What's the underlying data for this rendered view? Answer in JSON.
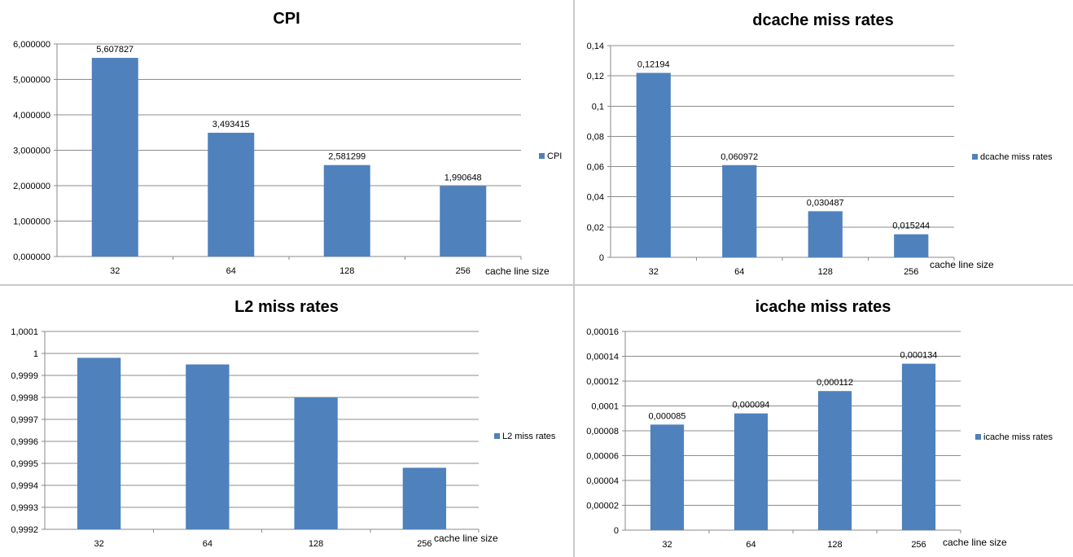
{
  "chart_data": [
    {
      "type": "bar",
      "title": "CPI",
      "xlabel": "cache line size",
      "ylabel": "",
      "categories": [
        "32",
        "64",
        "128",
        "256"
      ],
      "series": [
        {
          "name": "CPI",
          "values": [
            5.607827,
            3.493415,
            2.581299,
            1.990648
          ]
        }
      ],
      "data_labels": [
        "5,607827",
        "3,493415",
        "2,581299",
        "1,990648"
      ],
      "ylim": [
        0,
        6
      ],
      "yticks": [
        0,
        1,
        2,
        3,
        4,
        5,
        6
      ],
      "ytick_labels": [
        "0,000000",
        "1,000000",
        "2,000000",
        "3,000000",
        "4,000000",
        "5,000000",
        "6,000000"
      ],
      "grid": true,
      "legend": "right",
      "bar_color": "#4f81bd"
    },
    {
      "type": "bar",
      "title": "dcache miss rates",
      "xlabel": "cache line size",
      "ylabel": "",
      "categories": [
        "32",
        "64",
        "128",
        "256"
      ],
      "series": [
        {
          "name": "dcache miss rates",
          "values": [
            0.12194,
            0.060972,
            0.030487,
            0.015244
          ]
        }
      ],
      "data_labels": [
        "0,12194",
        "0,060972",
        "0,030487",
        "0,015244"
      ],
      "ylim": [
        0,
        0.14
      ],
      "yticks": [
        0,
        0.02,
        0.04,
        0.06,
        0.08,
        0.1,
        0.12,
        0.14
      ],
      "ytick_labels": [
        "0",
        "0,02",
        "0,04",
        "0,06",
        "0,08",
        "0,1",
        "0,12",
        "0,14"
      ],
      "grid": true,
      "legend": "right",
      "bar_color": "#4f81bd"
    },
    {
      "type": "bar",
      "title": "L2 miss rates",
      "xlabel": "cache line size",
      "ylabel": "",
      "categories": [
        "32",
        "64",
        "128",
        "256"
      ],
      "series": [
        {
          "name": "L2 miss rates",
          "values": [
            0.99998,
            0.99995,
            0.9998,
            0.99948
          ]
        }
      ],
      "data_labels": [],
      "ylim": [
        0.9992,
        1.0001
      ],
      "yticks": [
        0.9992,
        0.9993,
        0.9994,
        0.9995,
        0.9996,
        0.9997,
        0.9998,
        0.9999,
        1,
        1.0001
      ],
      "ytick_labels": [
        "0,9992",
        "0,9993",
        "0,9994",
        "0,9995",
        "0,9996",
        "0,9997",
        "0,9998",
        "0,9999",
        "1",
        "1,0001"
      ],
      "grid": true,
      "legend": "right",
      "bar_color": "#4f81bd"
    },
    {
      "type": "bar",
      "title": "icache miss rates",
      "xlabel": "cache line size",
      "ylabel": "",
      "categories": [
        "32",
        "64",
        "128",
        "256"
      ],
      "series": [
        {
          "name": "icache miss rates",
          "values": [
            8.5e-05,
            9.4e-05,
            0.000112,
            0.000134
          ]
        }
      ],
      "data_labels": [
        "0,000085",
        "0,000094",
        "0,000112",
        "0,000134"
      ],
      "ylim": [
        0,
        0.00016
      ],
      "yticks": [
        0,
        2e-05,
        4e-05,
        6e-05,
        8e-05,
        0.0001,
        0.00012,
        0.00014,
        0.00016
      ],
      "ytick_labels": [
        "0",
        "0,00002",
        "0,00004",
        "0,00006",
        "0,00008",
        "0,0001",
        "0,00012",
        "0,00014",
        "0,00016"
      ],
      "grid": true,
      "legend": "right",
      "bar_color": "#4f81bd"
    }
  ]
}
